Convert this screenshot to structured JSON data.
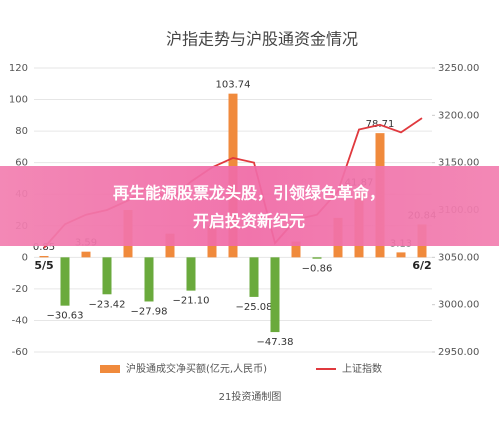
{
  "chart_data": {
    "type": "bar-line",
    "title": "沪指走势与沪股通资金情况",
    "categories": [
      "5/5",
      null,
      null,
      null,
      null,
      null,
      null,
      null,
      null,
      null,
      null,
      null,
      null,
      null,
      null,
      null,
      null,
      null,
      "6/2"
    ],
    "series": [
      {
        "name": "沪股通成交净买额(亿元,人民币)",
        "color": "#f08a3c",
        "negative_color": "#6aaa3c",
        "values": [
          0.85,
          -30.63,
          3.59,
          -23.42,
          30,
          -27.98,
          15,
          -21.1,
          20,
          103.74,
          -25.08,
          -47.38,
          10,
          -0.86,
          25,
          41.87,
          78.71,
          3.13,
          20.84
        ],
        "value_labels": [
          "0.85",
          "−30.63",
          "3.59",
          "−23.42",
          null,
          "−27.98",
          null,
          "−21.10",
          null,
          "103.74",
          "−25.08",
          "−47.38",
          null,
          "−0.86",
          null,
          "41.87",
          "78.71",
          "3.13",
          "20.84"
        ]
      },
      {
        "name": "上证指数",
        "color": "#e0393e",
        "axis": "y2",
        "values": [
          3060,
          3085,
          3095,
          3100,
          3110,
          3125,
          3110,
          3130,
          3145,
          3155,
          3150,
          3065,
          3090,
          3095,
          3120,
          3185,
          3190,
          3182,
          3197
        ]
      }
    ],
    "ylim": [
      -60,
      120
    ],
    "yticks": [
      -60,
      -40,
      -20,
      0,
      20,
      40,
      60,
      80,
      100,
      120
    ],
    "y2lim": [
      2950,
      3250
    ],
    "y2ticks": [
      {
        "value": 2950,
        "label": "2950.00"
      },
      {
        "value": 3000,
        "label": "3000.00"
      },
      {
        "value": 3050,
        "label": "3050.00"
      },
      {
        "value": 3100,
        "label": "3100.00"
      },
      {
        "value": 3150,
        "label": "3150.00"
      },
      {
        "value": 3200,
        "label": "3200.00"
      },
      {
        "value": 3250,
        "label": "3250.00"
      }
    ],
    "source": "21投资通制图"
  },
  "banner": {
    "lines": [
      "再生能源股票龙头股，引领绿色革命，",
      "开启投资新纪元"
    ]
  }
}
